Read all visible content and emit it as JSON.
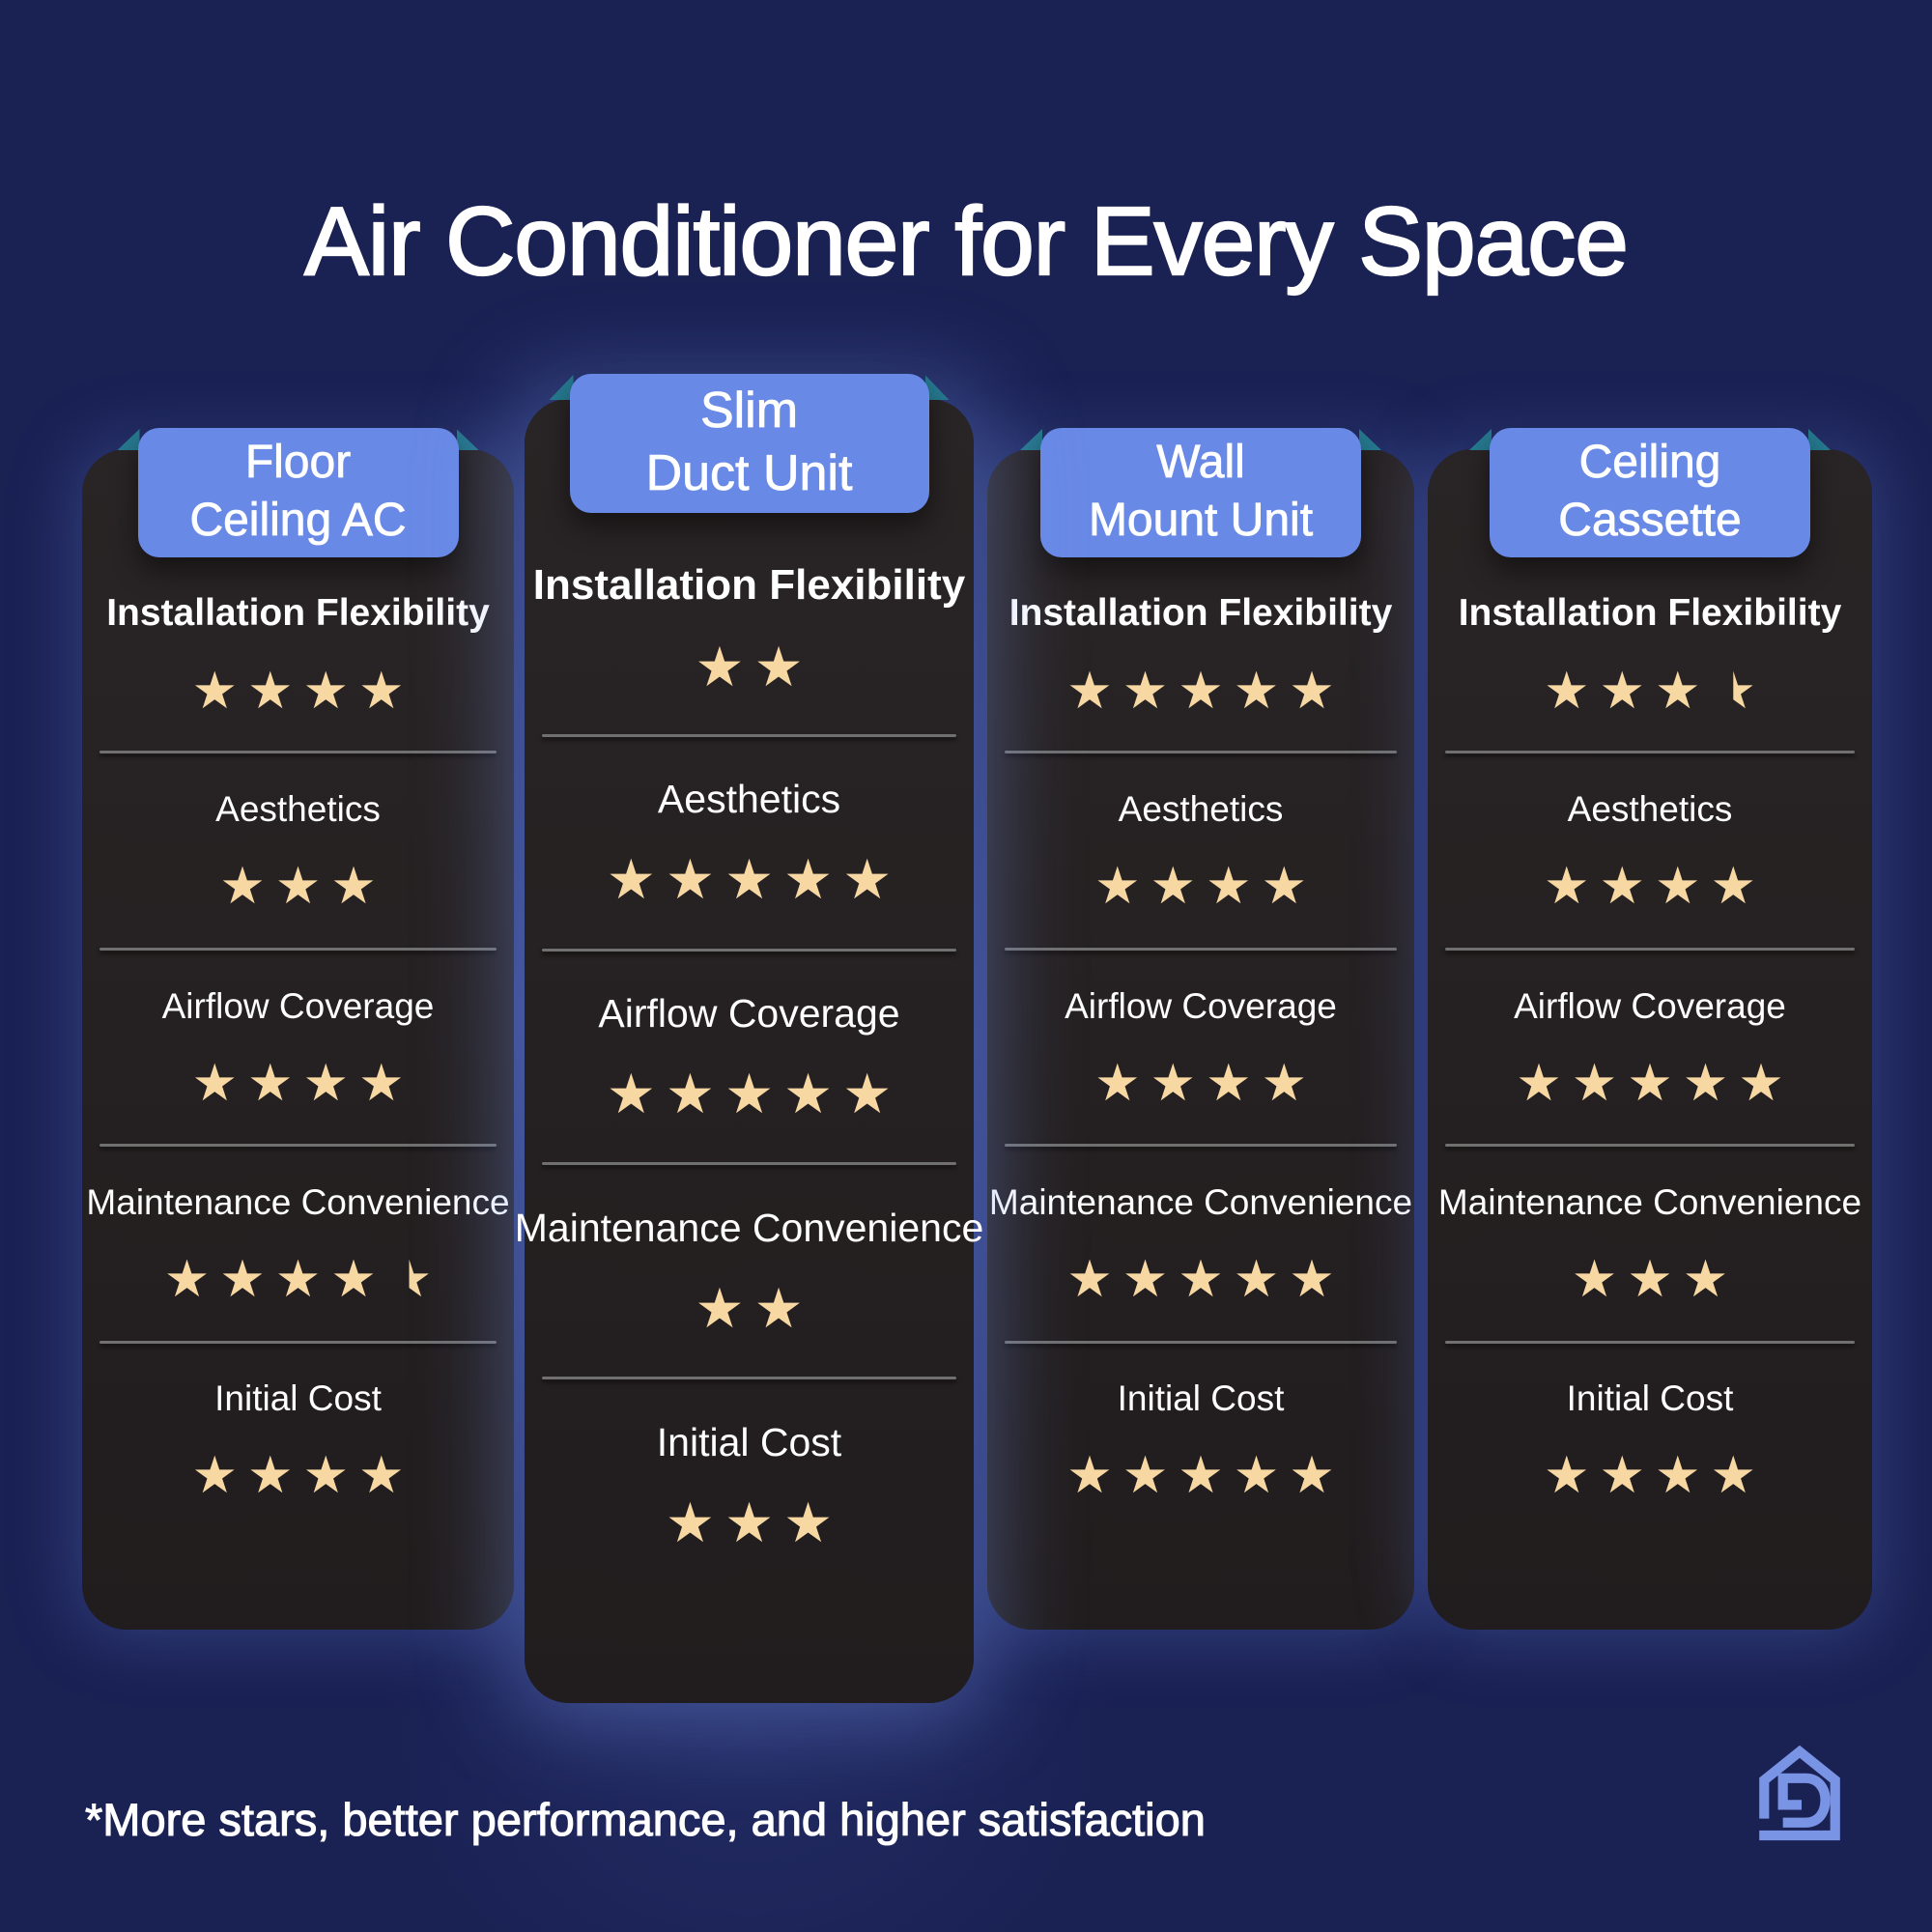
{
  "title": "Air Conditioner for Every Space",
  "footnote": "*More stars, better performance, and higher satisfaction",
  "categories": [
    "Installation Flexibility",
    "Aesthetics",
    "Airflow Coverage",
    "Maintenance Convenience",
    "Initial Cost"
  ],
  "units": [
    {
      "title_lines": [
        "Floor",
        "Ceiling AC"
      ],
      "ratings": [
        4,
        3,
        4,
        4.5,
        4
      ]
    },
    {
      "title_lines": [
        "Slim",
        "Duct Unit"
      ],
      "featured": true,
      "ratings": [
        2,
        5,
        5,
        2,
        3
      ]
    },
    {
      "title_lines": [
        "Wall",
        "Mount Unit"
      ],
      "ratings": [
        5,
        4,
        4,
        5,
        5
      ]
    },
    {
      "title_lines": [
        "Ceiling",
        "Cassette"
      ],
      "ratings": [
        3.5,
        4,
        5,
        3,
        4
      ]
    }
  ],
  "icons": {
    "star": "★",
    "logo": "house-d-logo"
  },
  "colors": {
    "background": "#1A2153",
    "card": "#252122",
    "ribbon_blue": "#6989E6",
    "fold_teal": "#26798F",
    "star_cream": "#F7D8A3",
    "divider_gray": "#707070",
    "text": "#FFFFFF",
    "logo_blue": "#7A94E5"
  },
  "chart_data": {
    "type": "table",
    "title": "Air Conditioner for Every Space",
    "row_categories": [
      "Installation Flexibility",
      "Aesthetics",
      "Airflow Coverage",
      "Maintenance Convenience",
      "Initial Cost"
    ],
    "columns": [
      "Floor Ceiling AC",
      "Slim Duct Unit",
      "Wall Mount Unit",
      "Ceiling Cassette"
    ],
    "series": [
      {
        "name": "Floor Ceiling AC",
        "values": [
          4,
          3,
          4,
          4.5,
          4
        ]
      },
      {
        "name": "Slim Duct Unit",
        "values": [
          2,
          5,
          5,
          2,
          3
        ]
      },
      {
        "name": "Wall Mount Unit",
        "values": [
          5,
          4,
          4,
          5,
          5
        ]
      },
      {
        "name": "Ceiling Cassette",
        "values": [
          3.5,
          4,
          5,
          3,
          4
        ]
      }
    ],
    "value_scale": {
      "min": 0,
      "max": 5,
      "unit": "stars"
    },
    "note": "*More stars, better performance, and higher satisfaction"
  }
}
